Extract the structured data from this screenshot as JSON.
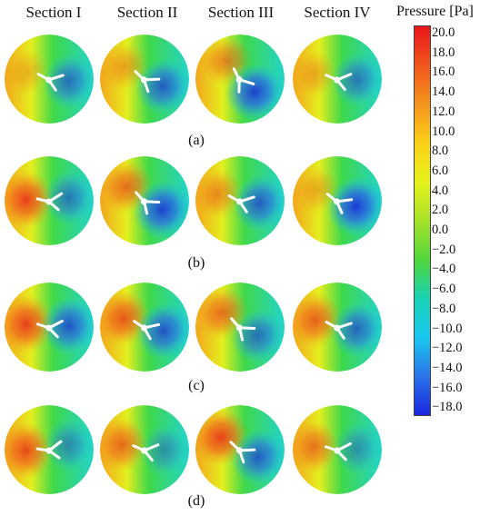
{
  "columns": [
    "Section I",
    "Section II",
    "Section III",
    "Section IV"
  ],
  "rows": [
    "(a)",
    "(b)",
    "(c)",
    "(d)"
  ],
  "colorbar": {
    "title": "Pressure [Pa]",
    "ticks": [
      "20.0",
      "18.0",
      "16.0",
      "14.0",
      "12.0",
      "10.0",
      "8.0",
      "6.0",
      "4.0",
      "2.0",
      "0.0",
      "−2.0",
      "−4.0",
      "−6.0",
      "−8.0",
      "−10.0",
      "−12.0",
      "−14.0",
      "−16.0",
      "−18.0"
    ],
    "colors": [
      "#e8141a",
      "#f2561d",
      "#f6941e",
      "#fcd017",
      "#e6f21a",
      "#a8e22a",
      "#4fd63a",
      "#19d2b4",
      "#19c7f0",
      "#2a74ea",
      "#1a26e0"
    ]
  }
}
